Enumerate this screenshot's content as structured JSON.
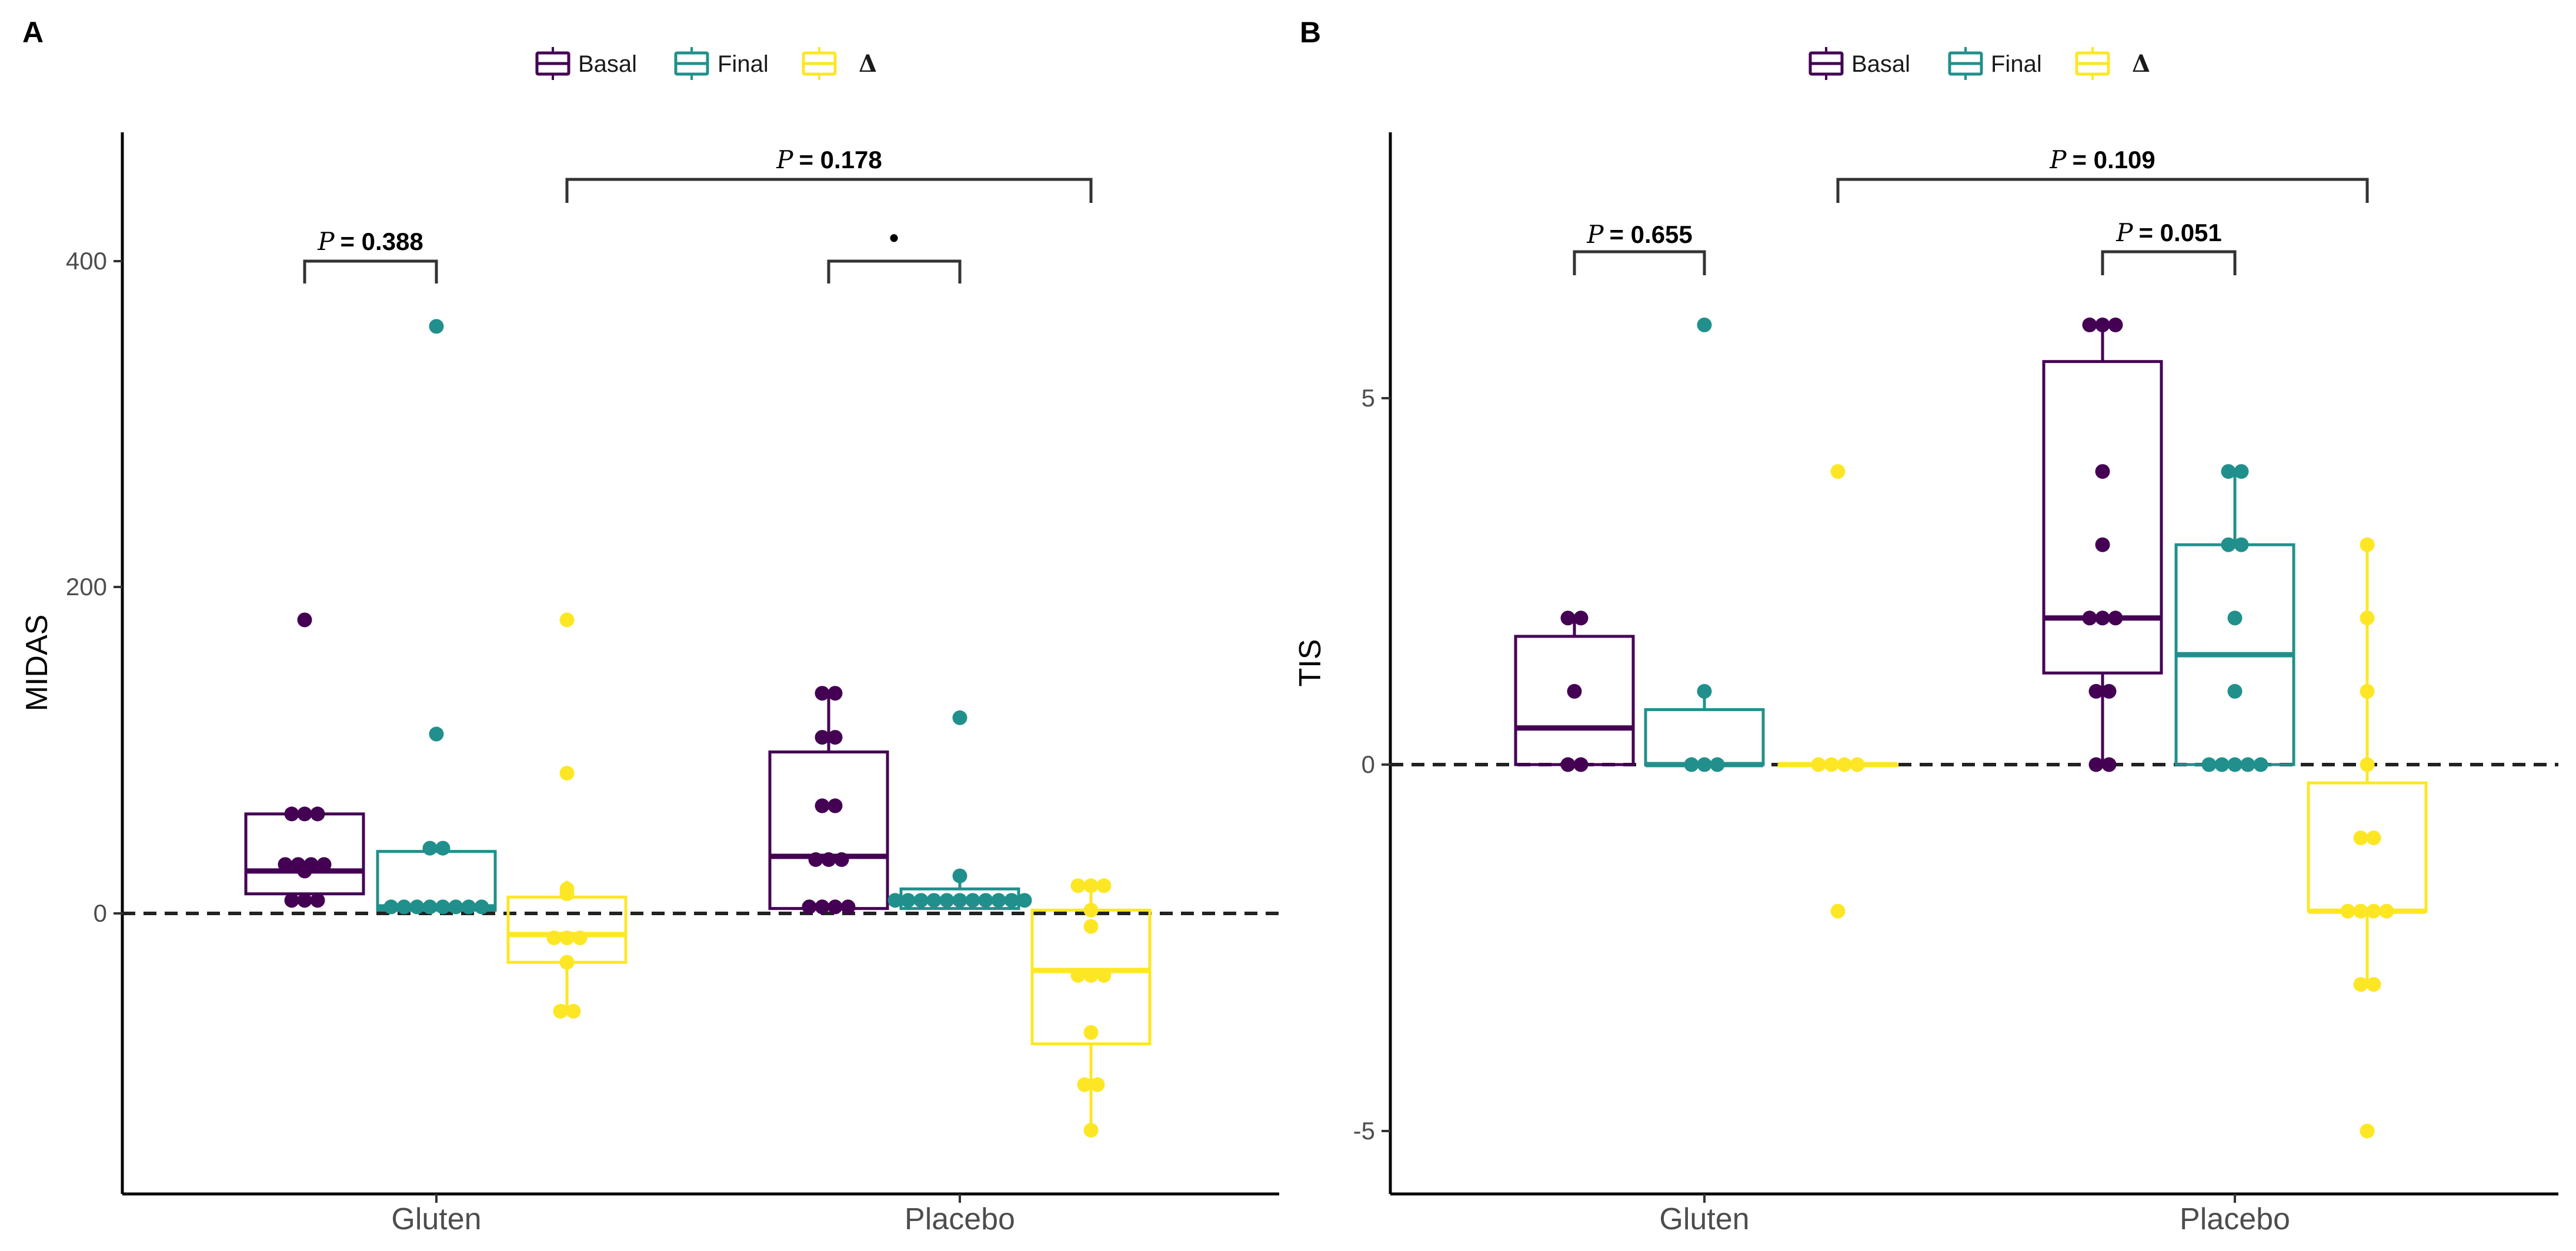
{
  "figure": {
    "colors": {
      "Basal": "#440154",
      "Final": "#21908C",
      "Delta": "#FDE725",
      "axis": "#000000",
      "bracket": "#333333"
    },
    "legend": [
      {
        "key": "Basal",
        "label": "Basal"
      },
      {
        "key": "Final",
        "label": "Final"
      },
      {
        "key": "Delta",
        "label": "Δ"
      }
    ]
  },
  "chart_data": [
    {
      "type": "boxplot",
      "panel": "A",
      "title": "",
      "xlabel": "",
      "ylabel": "MIDAS",
      "ylim": [
        -170,
        480
      ],
      "yticks": [
        0,
        200,
        400
      ],
      "reference_line": 0,
      "categories": [
        "Gluten",
        "Placebo"
      ],
      "series": [
        {
          "name": "Basal",
          "boxes": [
            {
              "category": "Gluten",
              "q1": 12,
              "median": 26,
              "q3": 61,
              "whisker_low": 7,
              "whisker_high": 61,
              "points": [
                180,
                61,
                61,
                61,
                30,
                30,
                30,
                30,
                26,
                8,
                8,
                8
              ]
            },
            {
              "category": "Placebo",
              "q1": 3,
              "median": 35,
              "q3": 99,
              "whisker_low": 3,
              "whisker_high": 135,
              "points": [
                135,
                135,
                108,
                108,
                66,
                66,
                33,
                33,
                33,
                4,
                4,
                4,
                4
              ]
            }
          ]
        },
        {
          "name": "Final",
          "boxes": [
            {
              "category": "Gluten",
              "q1": 2,
              "median": 4,
              "q3": 38,
              "whisker_low": 2,
              "whisker_high": 40,
              "points": [
                360,
                110,
                40,
                40,
                4,
                4,
                4,
                4,
                4,
                4,
                4,
                4
              ]
            },
            {
              "category": "Placebo",
              "q1": 3,
              "median": 8,
              "q3": 15,
              "whisker_low": 3,
              "whisker_high": 23,
              "points": [
                120,
                23,
                8,
                8,
                8,
                8,
                8,
                8,
                8,
                8,
                8,
                8,
                8
              ]
            }
          ]
        },
        {
          "name": "Δ",
          "boxes": [
            {
              "category": "Gluten",
              "q1": -30,
              "median": -13,
              "q3": 10,
              "whisker_low": -60,
              "whisker_high": 20,
              "points": [
                180,
                86,
                15,
                12,
                -15,
                -15,
                -15,
                -30,
                -60,
                -60
              ]
            },
            {
              "category": "Placebo",
              "q1": -80,
              "median": -35,
              "q3": 2,
              "whisker_low": -133,
              "whisker_high": 17,
              "points": [
                17,
                17,
                17,
                2,
                -8,
                -38,
                -38,
                -38,
                -73,
                -105,
                -105,
                -133
              ]
            }
          ]
        }
      ],
      "annotations": [
        {
          "text": "= 0.388",
          "prefix": "P",
          "from": "Gluten-Basal",
          "to": "Gluten-Final",
          "y": 400
        },
        {
          "text": "= 0.178",
          "prefix": "P",
          "from": "Gluten-Δ",
          "to": "Placebo-Δ",
          "y": 450
        },
        {
          "text": "•",
          "prefix": "",
          "from": "Placebo-Basal",
          "to": "Placebo-Final",
          "y": 400
        }
      ]
    },
    {
      "type": "boxplot",
      "panel": "B",
      "title": "",
      "xlabel": "",
      "ylabel": "TIS",
      "ylim": [
        -5.9,
        8.5
      ],
      "yticks": [
        -5,
        0,
        5
      ],
      "reference_line": 0,
      "categories": [
        "Gluten",
        "Placebo"
      ],
      "series": [
        {
          "name": "Basal",
          "boxes": [
            {
              "category": "Gluten",
              "q1": 0,
              "median": 0.5,
              "q3": 1.75,
              "whisker_low": 0,
              "whisker_high": 2,
              "points": [
                2,
                2,
                1,
                0,
                0
              ]
            },
            {
              "category": "Placebo",
              "q1": 1.25,
              "median": 2,
              "q3": 5.5,
              "whisker_low": 0,
              "whisker_high": 6,
              "points": [
                6,
                6,
                6,
                4,
                3,
                2,
                2,
                2,
                1,
                1,
                0,
                0
              ]
            }
          ]
        },
        {
          "name": "Final",
          "boxes": [
            {
              "category": "Gluten",
              "q1": 0,
              "median": 0,
              "q3": 0.75,
              "whisker_low": 0,
              "whisker_high": 1,
              "points": [
                6,
                1,
                0,
                0,
                0
              ]
            },
            {
              "category": "Placebo",
              "q1": 0,
              "median": 1.5,
              "q3": 3,
              "whisker_low": 0,
              "whisker_high": 4,
              "points": [
                4,
                4,
                3,
                3,
                2,
                1,
                0,
                0,
                0,
                0,
                0
              ]
            }
          ]
        },
        {
          "name": "Δ",
          "boxes": [
            {
              "category": "Gluten",
              "q1": 0,
              "median": 0,
              "q3": 0,
              "whisker_low": 0,
              "whisker_high": 0,
              "points": [
                4,
                0,
                0,
                0,
                0,
                -2
              ]
            },
            {
              "category": "Placebo",
              "q1": -2,
              "median": -2,
              "q3": -0.25,
              "whisker_low": -3,
              "whisker_high": 3,
              "points": [
                3,
                2,
                1,
                0,
                -1,
                -1,
                -2,
                -2,
                -2,
                -2,
                -3,
                -3,
                -5
              ]
            }
          ]
        }
      ],
      "annotations": [
        {
          "text": "= 0.655",
          "prefix": "P",
          "from": "Gluten-Basal",
          "to": "Gluten-Final",
          "y": 7
        },
        {
          "text": "= 0.109",
          "prefix": "P",
          "from": "Gluten-Δ",
          "to": "Placebo-Δ",
          "y": 8
        },
        {
          "text": "= 0.051",
          "prefix": "P",
          "from": "Placebo-Basal",
          "to": "Placebo-Final",
          "y": 7
        }
      ]
    }
  ]
}
